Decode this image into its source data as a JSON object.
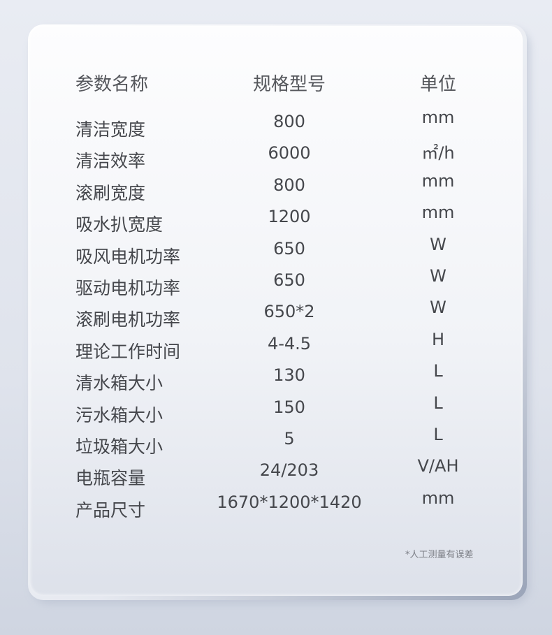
{
  "table": {
    "headers": [
      "参数名称",
      "规格型号",
      "单位"
    ],
    "rows": [
      {
        "name": "清洁宽度",
        "spec": "800",
        "unit": "mm"
      },
      {
        "name": "清洁效率",
        "spec": "6000",
        "unit": "㎡/h"
      },
      {
        "name": "滚刷宽度",
        "spec": "800",
        "unit": "mm"
      },
      {
        "name": "吸水扒宽度",
        "spec": "1200",
        "unit": "mm"
      },
      {
        "name": "吸风电机功率",
        "spec": "650",
        "unit": "W"
      },
      {
        "name": "驱动电机功率",
        "spec": "650",
        "unit": "W"
      },
      {
        "name": "滚刷电机功率",
        "spec": "650*2",
        "unit": "W"
      },
      {
        "name": "理论工作时间",
        "spec": "4-4.5",
        "unit": "H"
      },
      {
        "name": "清水箱大小",
        "spec": "130",
        "unit": "L"
      },
      {
        "name": "污水箱大小",
        "spec": "150",
        "unit": "L"
      },
      {
        "name": "垃圾箱大小",
        "spec": "5",
        "unit": "L"
      },
      {
        "name": "电瓶容量",
        "spec": "24/203",
        "unit": "V/AH"
      },
      {
        "name": "产品尺寸",
        "spec": "1670*1200*1420",
        "unit": "mm"
      }
    ]
  },
  "note": "*人工测量有误差"
}
